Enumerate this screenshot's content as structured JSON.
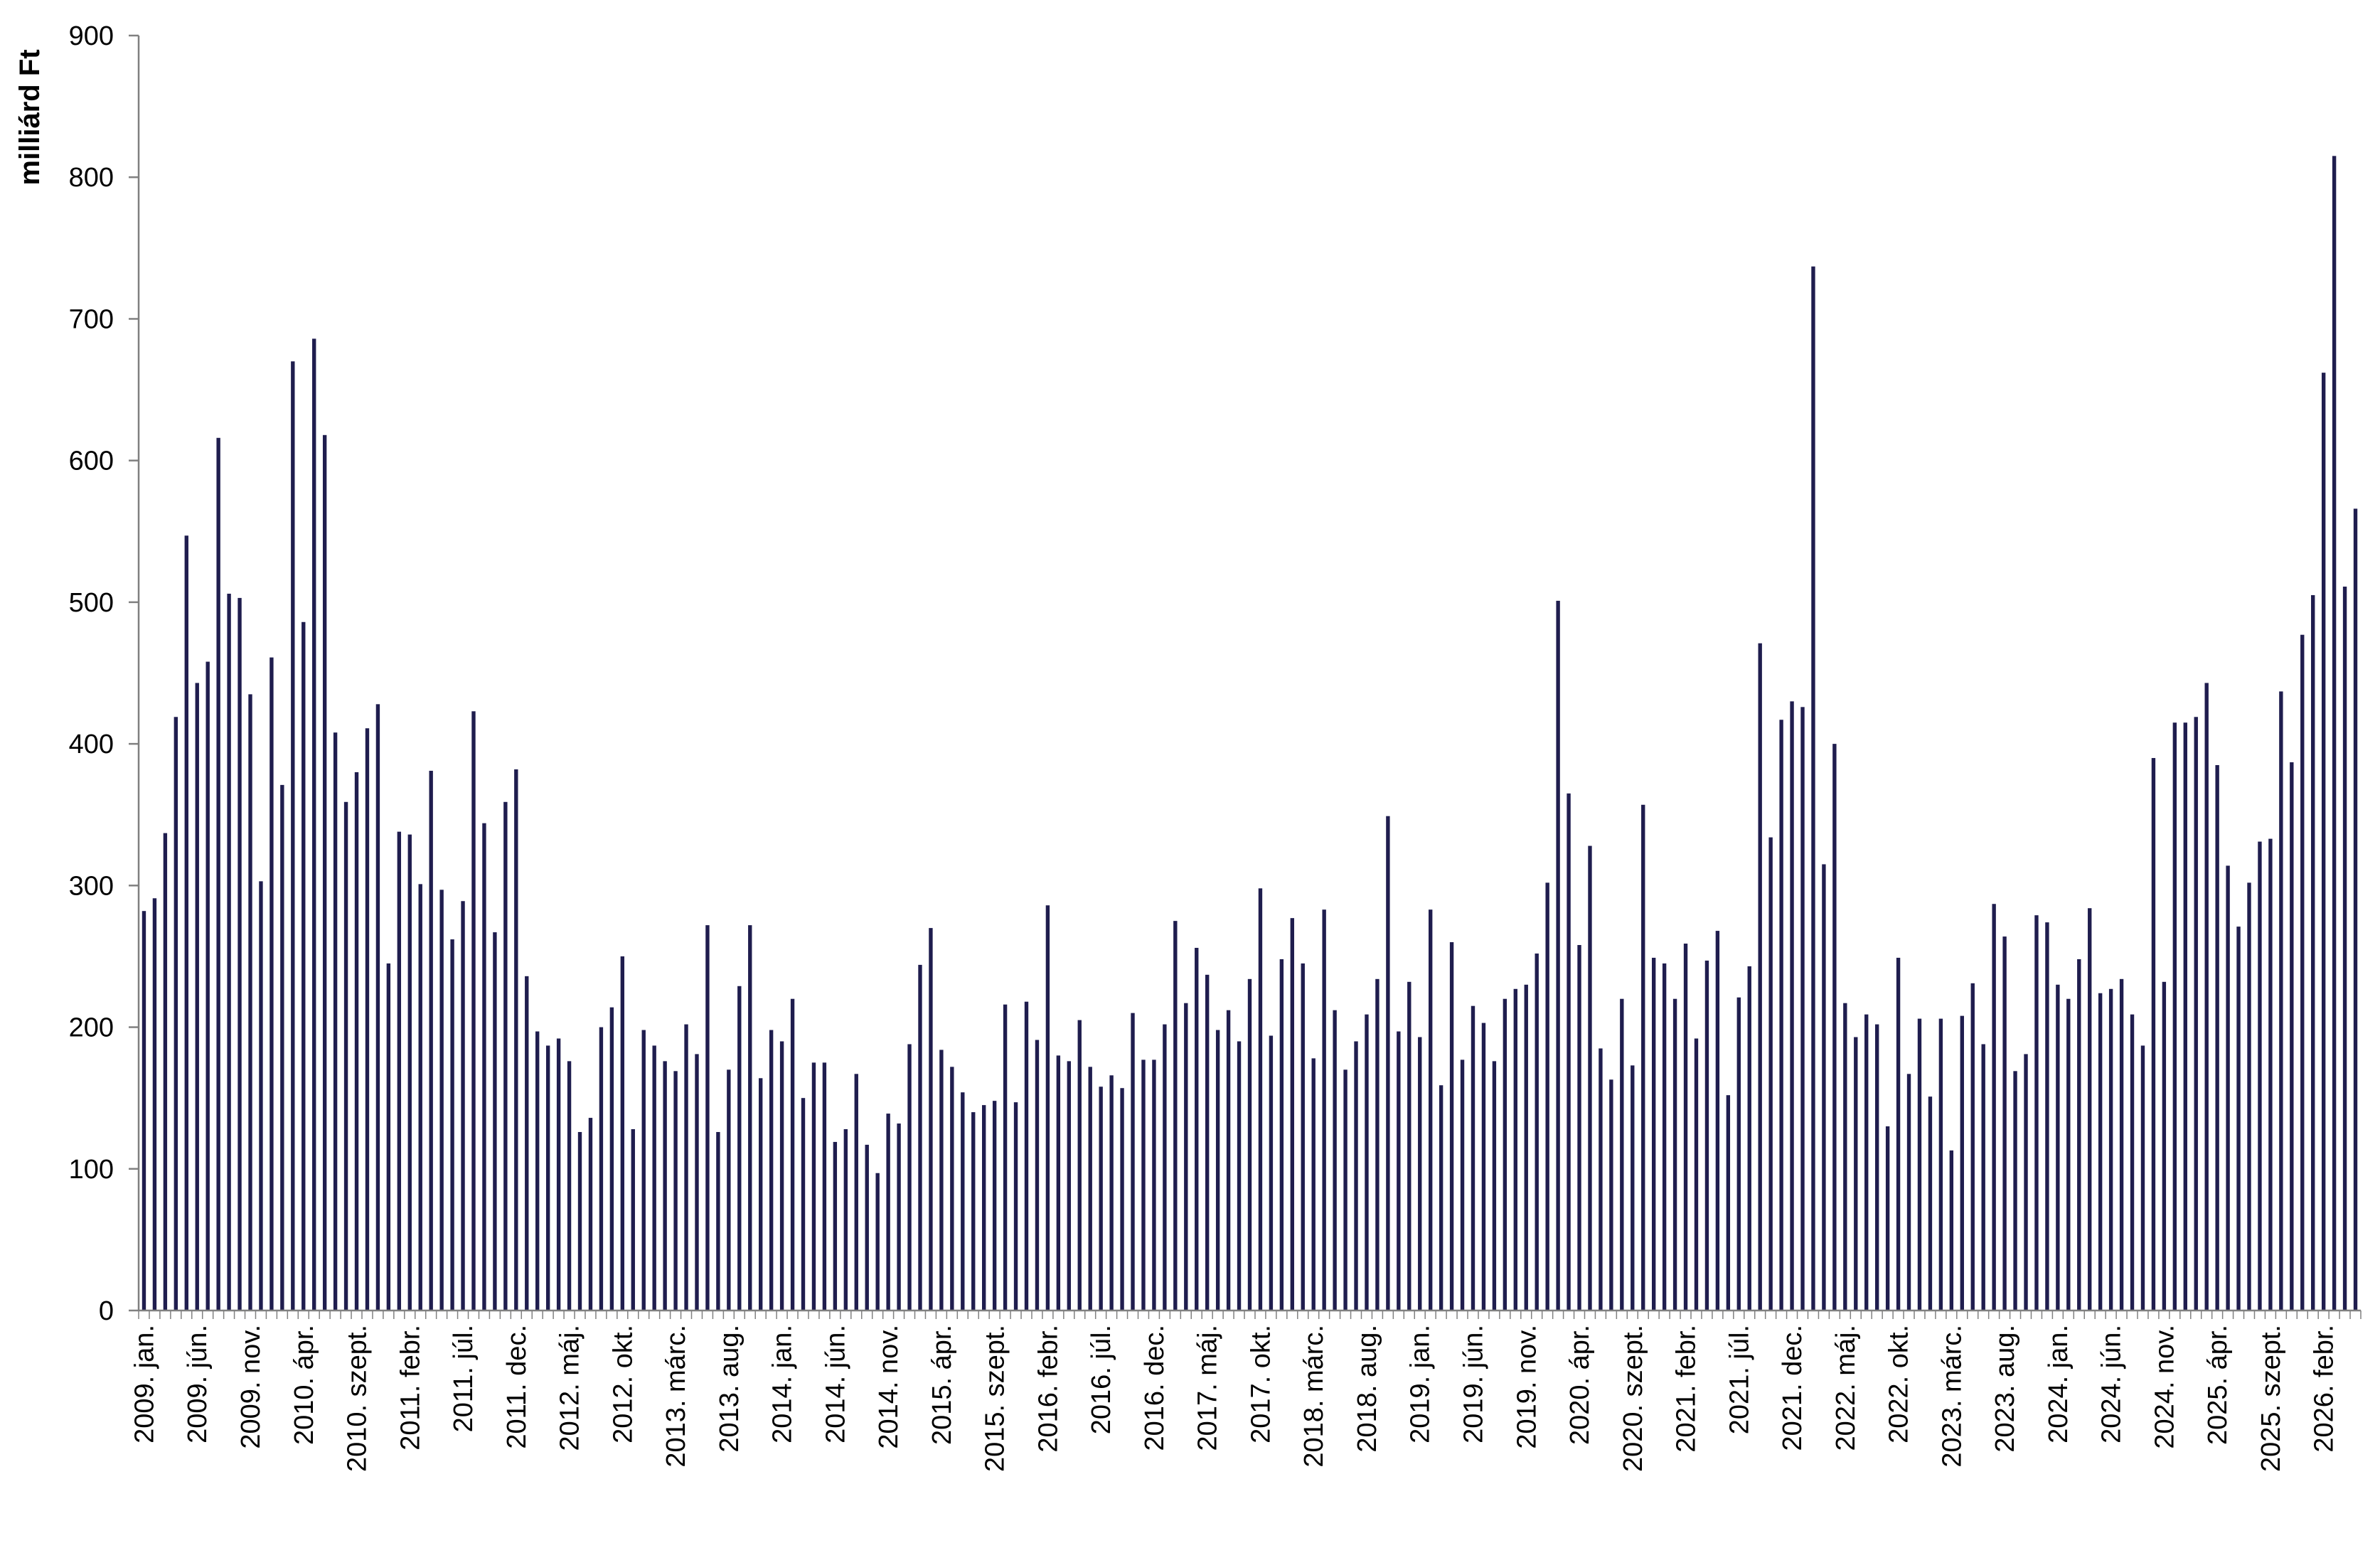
{
  "chart_data": {
    "type": "bar",
    "ylabel": "milliárd Ft",
    "xlabel": "",
    "title": "",
    "ylim": [
      0,
      900
    ],
    "yticks": [
      0,
      100,
      200,
      300,
      400,
      500,
      600,
      700,
      800,
      900
    ],
    "grid": false,
    "legend": "none",
    "bar_color": "#1f1d4e",
    "axis_color": "#808080",
    "start": "2009-01",
    "xtick_labels": [
      "2009. jan.",
      "2009. jún.",
      "2009. nov.",
      "2010. ápr.",
      "2010. szept.",
      "2011. febr.",
      "2011. júl.",
      "2011. dec.",
      "2012. máj.",
      "2012. okt.",
      "2013. márc.",
      "2013. aug.",
      "2014. jan.",
      "2014. jún.",
      "2014. nov.",
      "2015. ápr.",
      "2015. szept.",
      "2016. febr.",
      "2016. júl.",
      "2016. dec.",
      "2017. máj.",
      "2017. okt.",
      "2018. márc.",
      "2018. aug.",
      "2019. jan.",
      "2019. jún.",
      "2019. nov.",
      "2020. ápr.",
      "2020. szept.",
      "2021. febr.",
      "2021. júl.",
      "2021. dec.",
      "2022. máj.",
      "2022. okt.",
      "2023. márc.",
      "2023. aug.",
      "2024. jan.",
      "2024. jún.",
      "2024. nov.",
      "2025. ápr.",
      "2025. szept.",
      "2026. febr."
    ],
    "values": [
      282,
      291,
      337,
      419,
      547,
      443,
      458,
      616,
      506,
      503,
      435,
      303,
      461,
      371,
      670,
      486,
      686,
      618,
      408,
      359,
      380,
      411,
      428,
      245,
      338,
      336,
      301,
      381,
      297,
      262,
      289,
      423,
      344,
      267,
      359,
      382,
      236,
      197,
      187,
      192,
      176,
      126,
      136,
      200,
      214,
      250,
      128,
      198,
      187,
      176,
      169,
      202,
      181,
      272,
      126,
      170,
      229,
      272,
      164,
      198,
      190,
      220,
      150,
      175,
      175,
      119,
      128,
      167,
      117,
      97,
      139,
      132,
      188,
      244,
      270,
      184,
      172,
      154,
      140,
      145,
      148,
      216,
      147,
      218,
      191,
      286,
      180,
      176,
      205,
      172,
      158,
      166,
      157,
      210,
      177,
      177,
      202,
      275,
      217,
      256,
      237,
      198,
      212,
      190,
      234,
      298,
      194,
      248,
      277,
      245,
      178,
      283,
      212,
      170,
      190,
      209,
      234,
      349,
      197,
      232,
      193,
      283,
      159,
      260,
      177,
      215,
      203,
      176,
      220,
      227,
      230,
      252,
      302,
      501,
      365,
      258,
      328,
      185,
      163,
      220,
      173,
      357,
      249,
      245,
      220,
      259,
      192,
      247,
      268,
      152,
      221,
      243,
      471,
      334,
      417,
      430,
      426,
      737,
      315,
      400,
      217,
      193,
      209,
      202,
      130,
      249,
      167,
      206,
      151,
      206,
      113,
      208,
      231,
      188,
      287,
      264,
      169,
      181,
      279,
      274,
      230,
      220,
      248,
      284,
      224,
      227,
      234,
      209,
      187,
      390,
      232,
      415,
      415,
      419,
      443,
      385,
      314,
      271,
      302,
      331,
      333,
      437,
      387,
      477,
      505,
      662,
      815,
      511,
      566
    ]
  }
}
